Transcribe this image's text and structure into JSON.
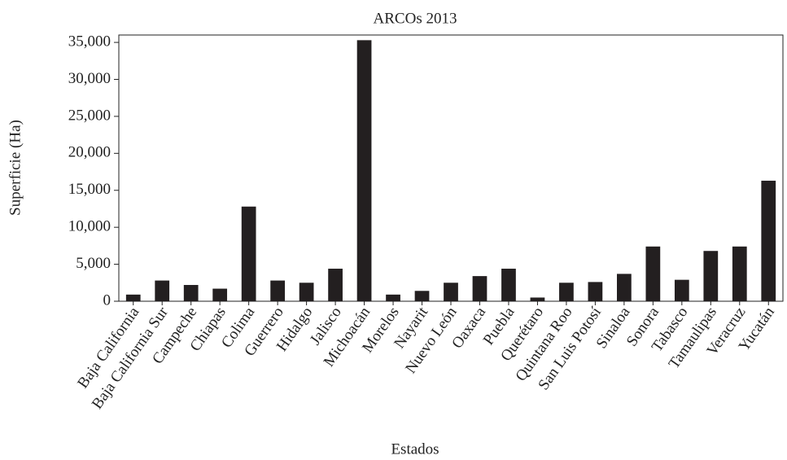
{
  "chart_data": {
    "type": "bar",
    "title": "ARCOs 2013",
    "x_label": "Estados",
    "y_label": "Superficie (Ha)",
    "categories": [
      "Baja California",
      "Baja California Sur",
      "Campeche",
      "Chiapas",
      "Colima",
      "Guerrero",
      "Hidalgo",
      "Jalisco",
      "Michoacán",
      "Morelos",
      "Nayarit",
      "Nuevo León",
      "Oaxaca",
      "Puebla",
      "Querétaro",
      "Quintana Roo",
      "San Luis Potosí",
      "Sinaloa",
      "Sonora",
      "Tabasco",
      "Tamaulipas",
      "Veracruz",
      "Yucatán"
    ],
    "values": [
      900,
      2800,
      2200,
      1700,
      12800,
      2800,
      2500,
      4400,
      35300,
      900,
      1400,
      2500,
      3400,
      4400,
      500,
      2500,
      2600,
      3700,
      7400,
      2900,
      6800,
      7400,
      16300
    ],
    "color": "#231f20",
    "ylim": [
      0,
      36000
    ],
    "yticks": [
      0,
      {
        "value": 5000,
        "label": "5,000"
      },
      {
        "value": 10000,
        "label": "10,000"
      },
      {
        "value": 15000,
        "label": "15,000"
      },
      {
        "value": 20000,
        "label": "20,000"
      },
      {
        "value": 25000,
        "label": "25,000"
      },
      {
        "value": 30000,
        "label": "30,000"
      },
      {
        "value": 35000,
        "label": "35,000"
      }
    ]
  }
}
